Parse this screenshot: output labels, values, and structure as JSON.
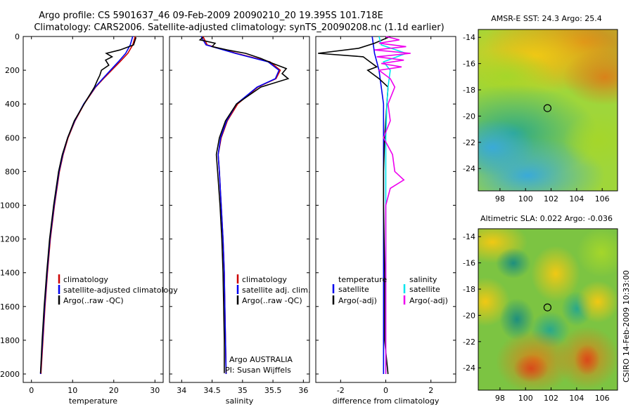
{
  "header": {
    "line1": "Argo profile: CS 5901637_46 09-Feb-2009 20090210_20 19.395S 101.718E",
    "line2": "Climatology: CARS2006. Satellite-adjusted climatology: synTS_20090208.nc (1.1d earlier)"
  },
  "footer": {
    "credit": "CSIRO 14-Feb-2009 10:33:00"
  },
  "colors": {
    "climatology": "#cc0000",
    "satellite": "#0000ee",
    "argo": "#000000",
    "sal_satellite": "#00e5ee",
    "sal_argo": "#ee00ee"
  },
  "chart_data": [
    {
      "type": "line",
      "panel": "temperature",
      "xlabel": "temperature",
      "ylabel": "",
      "xlim": [
        -2,
        32
      ],
      "ylim": [
        2050,
        0
      ],
      "xticks": [
        0,
        10,
        20,
        30
      ],
      "yticks": [
        0,
        200,
        400,
        600,
        800,
        1000,
        1200,
        1400,
        1600,
        1800,
        2000
      ],
      "legend": [
        "climatology",
        "satellite-adjusted climatology",
        "Argo(..raw -QC)"
      ],
      "series": [
        {
          "name": "climatology",
          "depth": [
            0,
            50,
            100,
            150,
            200,
            250,
            300,
            400,
            500,
            600,
            700,
            800,
            1000,
            1200,
            1400,
            1600,
            1800,
            2000
          ],
          "values": [
            25.2,
            24.6,
            23.4,
            21.5,
            19.5,
            17.5,
            15.6,
            12.8,
            10.6,
            8.9,
            7.7,
            6.8,
            5.6,
            4.6,
            3.9,
            3.3,
            2.8,
            2.3
          ]
        },
        {
          "name": "satellite-adjusted climatology",
          "depth": [
            0,
            50,
            100,
            150,
            200,
            250,
            300,
            400,
            500,
            600,
            700,
            800,
            1000,
            1200,
            1400,
            1600,
            1800,
            2000
          ],
          "values": [
            24.6,
            24.0,
            22.9,
            21.1,
            19.2,
            17.3,
            15.5,
            12.7,
            10.5,
            8.8,
            7.6,
            6.7,
            5.5,
            4.5,
            3.8,
            3.2,
            2.7,
            2.2
          ]
        },
        {
          "name": "Argo(..raw -QC)",
          "depth": [
            5,
            50,
            80,
            100,
            120,
            140,
            170,
            200,
            230,
            260,
            300,
            400,
            500,
            600,
            700,
            800,
            1000,
            1200,
            1400,
            1600,
            1800,
            1995
          ],
          "values": [
            25.4,
            24.8,
            21.5,
            18.2,
            19.6,
            18.0,
            18.8,
            17.0,
            16.6,
            16.0,
            15.3,
            12.8,
            10.4,
            8.8,
            7.5,
            6.6,
            5.4,
            4.4,
            3.7,
            3.1,
            2.6,
            2.2
          ]
        }
      ],
      "annotations": []
    },
    {
      "type": "line",
      "panel": "salinity",
      "xlabel": "salinity",
      "xlim": [
        33.8,
        36.1
      ],
      "ylim": [
        2050,
        0
      ],
      "xticks": [
        34,
        34.5,
        35,
        35.5,
        36
      ],
      "legend": [
        "climatology",
        "satellite adj. clim.",
        "Argo(..raw -QC)"
      ],
      "series": [
        {
          "name": "climatology",
          "depth": [
            0,
            50,
            100,
            150,
            200,
            250,
            300,
            400,
            500,
            600,
            700,
            800,
            1000,
            1200,
            1400,
            1600,
            1800,
            2000
          ],
          "values": [
            34.35,
            34.42,
            34.9,
            35.45,
            35.62,
            35.55,
            35.25,
            34.92,
            34.75,
            34.65,
            34.6,
            34.62,
            34.65,
            34.68,
            34.7,
            34.71,
            34.72,
            34.73
          ]
        },
        {
          "name": "satellite adj. clim.",
          "depth": [
            0,
            50,
            100,
            150,
            200,
            250,
            300,
            400,
            500,
            600,
            700,
            800,
            1000,
            1200,
            1400,
            1600,
            1800,
            2000
          ],
          "values": [
            34.32,
            34.4,
            34.88,
            35.42,
            35.6,
            35.54,
            35.24,
            34.9,
            34.74,
            34.64,
            34.6,
            34.62,
            34.65,
            34.68,
            34.7,
            34.71,
            34.72,
            34.73
          ]
        },
        {
          "name": "Argo(..raw -QC)",
          "depth": [
            5,
            20,
            40,
            60,
            80,
            100,
            130,
            160,
            190,
            220,
            250,
            300,
            400,
            500,
            600,
            700,
            800,
            1000,
            1200,
            1400,
            1600,
            1800,
            1995
          ],
          "values": [
            34.35,
            34.3,
            34.55,
            34.5,
            34.75,
            35.05,
            35.3,
            35.5,
            35.72,
            35.65,
            35.75,
            35.3,
            34.9,
            34.72,
            34.62,
            34.57,
            34.59,
            34.63,
            34.66,
            34.68,
            34.69,
            34.7,
            34.7
          ]
        }
      ],
      "annotations": [
        "Argo AUSTRALIA",
        "PI: Susan Wijffels"
      ]
    },
    {
      "type": "line",
      "panel": "difference",
      "xlabel": "difference from climatology",
      "xlim": [
        -3.1,
        3.1
      ],
      "ylim": [
        2050,
        0
      ],
      "xticks": [
        -2,
        0,
        2
      ],
      "legend_temperature": [
        "temperature",
        "satellite",
        "Argo(-adj)"
      ],
      "legend_salinity": [
        "salinity",
        "satellite",
        "Argo(-adj)"
      ],
      "series": [
        {
          "name": "temperature satellite",
          "depth": [
            0,
            100,
            200,
            400,
            600,
            800,
            1000,
            1400,
            1800,
            2000
          ],
          "values": [
            -0.6,
            -0.5,
            -0.3,
            -0.1,
            -0.1,
            -0.1,
            -0.1,
            -0.1,
            -0.1,
            -0.1
          ]
        },
        {
          "name": "temperature Argo(-adj)",
          "depth": [
            0,
            40,
            70,
            100,
            120,
            150,
            180,
            200,
            250,
            300,
            400,
            600,
            800,
            1000,
            1400,
            1800,
            2000
          ],
          "values": [
            0.2,
            -0.5,
            -1.2,
            -3.0,
            -1.0,
            -0.7,
            -0.4,
            -0.8,
            -0.3,
            0.1,
            0.05,
            -0.05,
            -0.1,
            -0.1,
            -0.05,
            -0.05,
            0.1
          ]
        },
        {
          "name": "salinity satellite",
          "depth": [
            0,
            50,
            100,
            150,
            200,
            300,
            400,
            600,
            800,
            1000,
            1400,
            1800,
            2000
          ],
          "values": [
            -0.3,
            -0.2,
            0.9,
            -0.1,
            0.2,
            0.1,
            0.05,
            0.0,
            0.0,
            0.0,
            0.0,
            0.0,
            0.0
          ]
        },
        {
          "name": "salinity Argo(-adj)",
          "depth": [
            0,
            20,
            40,
            60,
            80,
            100,
            120,
            140,
            160,
            180,
            200,
            250,
            300,
            400,
            500,
            600,
            700,
            800,
            850,
            900,
            1000,
            1400,
            1800,
            2000
          ],
          "values": [
            0.0,
            0.6,
            -0.3,
            0.9,
            -0.5,
            1.1,
            -0.4,
            0.8,
            -0.2,
            0.7,
            -0.3,
            0.2,
            0.4,
            0.1,
            0.2,
            -0.1,
            0.3,
            0.4,
            0.8,
            0.2,
            0.0,
            0.0,
            0.0,
            0.0
          ]
        }
      ],
      "annotations": []
    },
    {
      "type": "heatmap",
      "panel": "sst_map",
      "title": "AMSR-E SST: 24.3 Argo: 25.4",
      "xlim": [
        96.3,
        107.2
      ],
      "ylim": [
        -25.7,
        -13.4
      ],
      "xticks": [
        98,
        100,
        102,
        104,
        106
      ],
      "yticks": [
        -14,
        -16,
        -18,
        -20,
        -22,
        -24
      ],
      "marker": {
        "lon": 101.718,
        "lat": -19.395
      }
    },
    {
      "type": "heatmap",
      "panel": "sla_map",
      "title": "Altimetric SLA: 0.022 Argo: -0.036",
      "xlim": [
        96.3,
        107.2
      ],
      "ylim": [
        -25.7,
        -13.4
      ],
      "xticks": [
        98,
        100,
        102,
        104,
        106
      ],
      "yticks": [
        -14,
        -16,
        -18,
        -20,
        -22,
        -24
      ],
      "marker": {
        "lon": 101.718,
        "lat": -19.395
      }
    }
  ]
}
